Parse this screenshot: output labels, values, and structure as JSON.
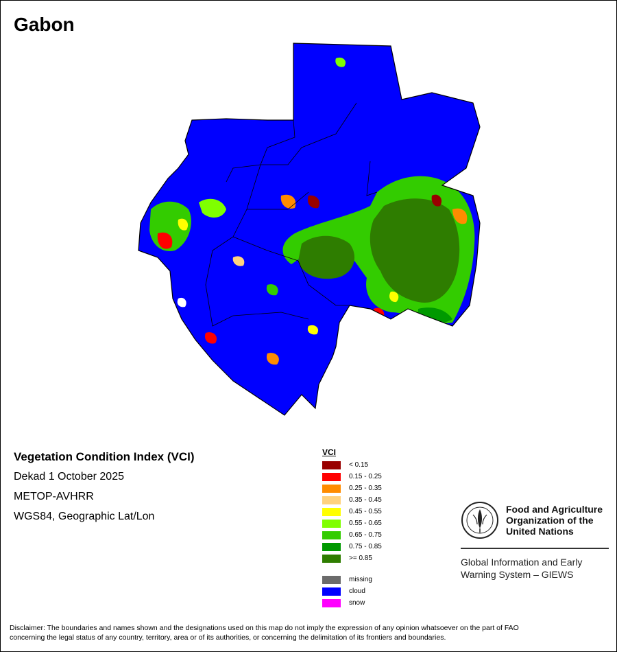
{
  "header": {
    "country": "Gabon"
  },
  "info": {
    "map_title": "Vegetation Condition Index (VCI)",
    "period": "Dekad 1 October 2025",
    "sensor": "METOP-AVHRR",
    "projection": "WGS84, Geographic Lat/Lon"
  },
  "legend": {
    "title": "VCI",
    "classes": [
      {
        "label": "< 0.15",
        "color": "#990000"
      },
      {
        "label": "0.15 - 0.25",
        "color": "#ff0000"
      },
      {
        "label": "0.25 - 0.35",
        "color": "#ff8c00"
      },
      {
        "label": "0.35 - 0.45",
        "color": "#ffd27f"
      },
      {
        "label": "0.45 - 0.55",
        "color": "#ffff00"
      },
      {
        "label": "0.55 - 0.65",
        "color": "#7fff00"
      },
      {
        "label": "0.65 - 0.75",
        "color": "#33cc00"
      },
      {
        "label": "0.75 - 0.85",
        "color": "#009900"
      },
      {
        "label": ">= 0.85",
        "color": "#2e7d00"
      }
    ],
    "special": [
      {
        "label": "missing",
        "color": "#6b6b6b"
      },
      {
        "label": "cloud",
        "color": "#0000ff"
      },
      {
        "label": "snow",
        "color": "#ff00ff"
      }
    ]
  },
  "logo": {
    "icon": "fao-logo-icon",
    "org_line1": "Food and Agriculture",
    "org_line2": "Organization of the",
    "org_line3": "United Nations",
    "giews_line1": "Global Information and Early",
    "giews_line2": "Warning System – GIEWS"
  },
  "disclaimer": {
    "line1": "Disclaimer: The boundaries and names shown and the designations used on this map do not imply the expression of any opinion whatsoever on the part of FAO",
    "line2": "concerning the legal status of any country, territory, area or of its authorities, or concerning the delimitation of its frontiers and boundaries."
  }
}
